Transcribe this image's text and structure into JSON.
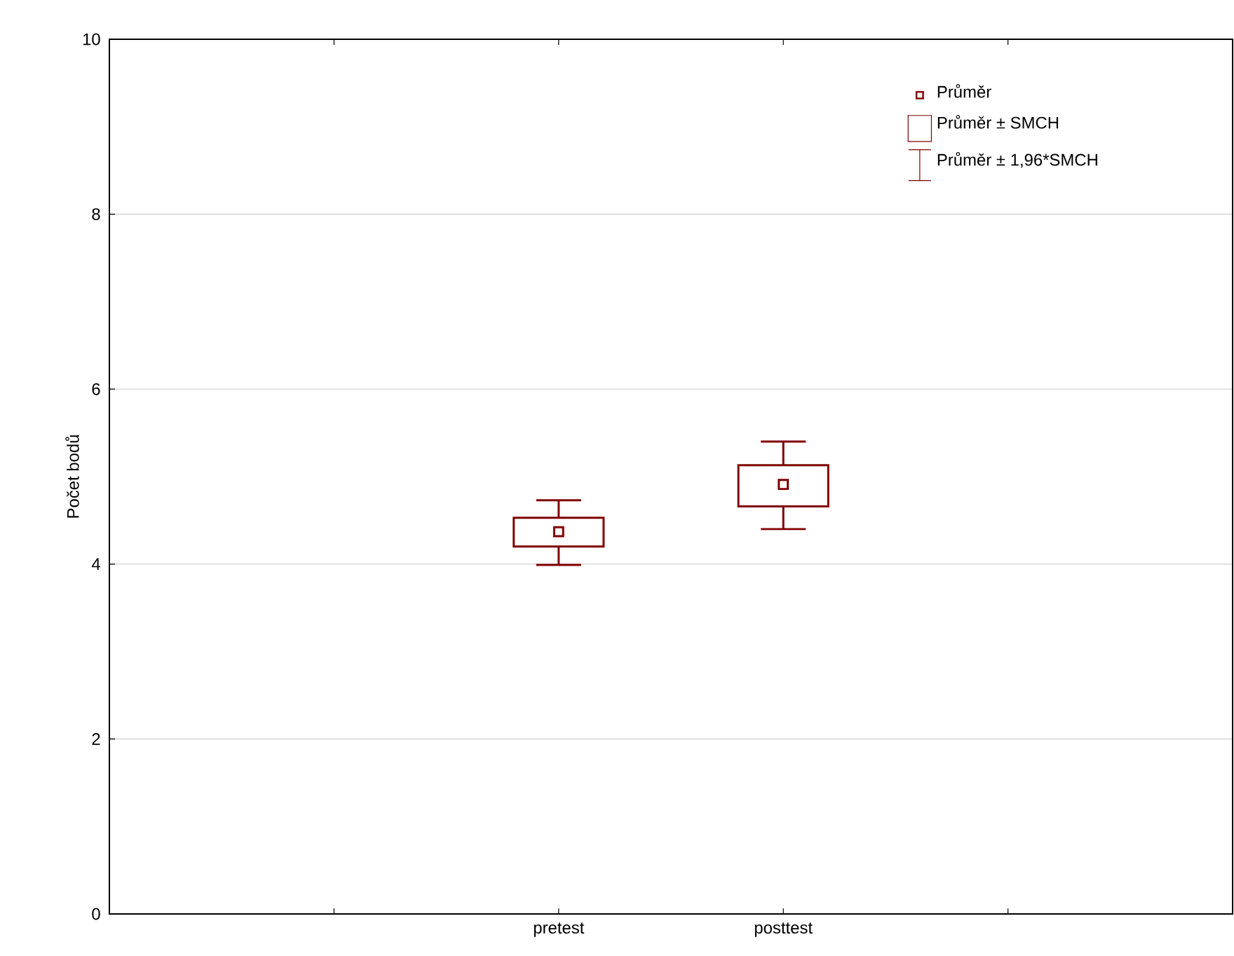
{
  "chart_data": {
    "type": "box",
    "ylabel": "Počet bodů",
    "categories": [
      null,
      "pretest",
      "posttest",
      null
    ],
    "boxes": [
      null,
      {
        "low": 3.99,
        "q1": 4.2,
        "median": 4.37,
        "q3": 4.53,
        "high": 4.73
      },
      {
        "low": 4.4,
        "q1": 4.66,
        "median": 4.91,
        "q3": 5.13,
        "high": 5.4
      },
      null
    ],
    "color": "#800000",
    "ylim": [
      0,
      10
    ],
    "yticks": [
      0,
      2,
      4,
      6,
      8,
      10
    ],
    "grid": "y",
    "marker": "square",
    "annotations": [
      "Průměr",
      "Průměr  ± SMCH",
      "Průměr ± 1,96*SMCH"
    ]
  }
}
